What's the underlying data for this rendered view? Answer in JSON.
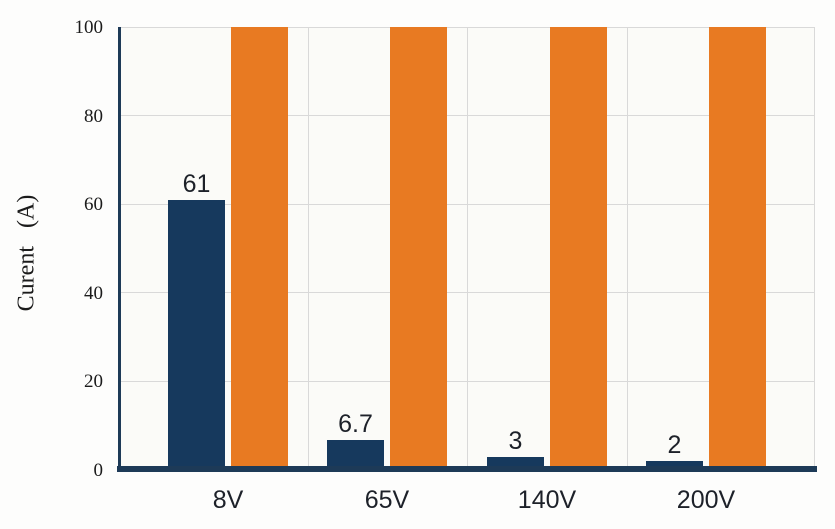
{
  "chart_data": {
    "type": "bar",
    "title": "",
    "categories": [
      "8V",
      "65V",
      "140V",
      "200V"
    ],
    "series": [
      {
        "name": "navy-series",
        "color": "#16395d",
        "values": [
          61,
          6.7,
          3,
          2
        ],
        "data_labels": [
          "61",
          "6.7",
          "3",
          "2"
        ]
      },
      {
        "name": "orange-series",
        "color": "#e87a22",
        "values": [
          100,
          100,
          100,
          100
        ],
        "data_labels": [
          "",
          "",
          "",
          ""
        ]
      }
    ],
    "xlabel": "",
    "ylabel": "Curent   (A)",
    "ylim": [
      0,
      100
    ],
    "yticks": [
      0,
      20,
      40,
      60,
      80,
      100
    ],
    "grid": true,
    "legend": "none"
  },
  "style": {
    "page_bg": "#fdfdfc",
    "plot_bg": "#fbfbf8",
    "grid_color": "#d9d9d9",
    "axis_color": "#1d3a57",
    "tick_text_color": "#1b1b1b",
    "label_text_color": "#1d2129"
  }
}
